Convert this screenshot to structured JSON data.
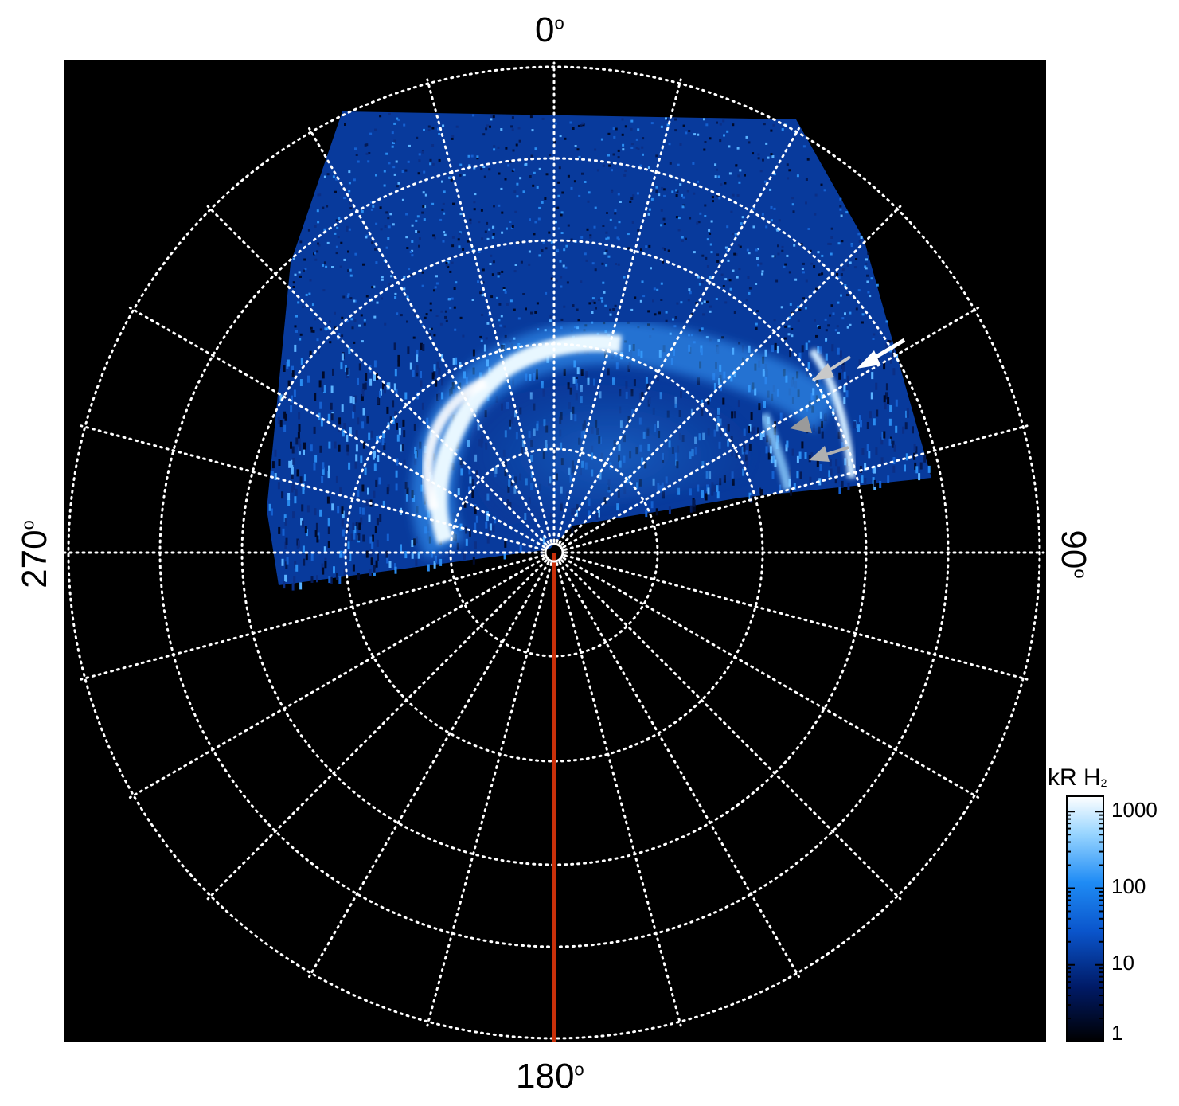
{
  "plot": {
    "azimuth_labels": {
      "top": "0",
      "right": "90",
      "bottom": "180",
      "left": "270"
    },
    "degree_symbol": "o",
    "grid": "dotted",
    "background_color": "#000000",
    "grid_color": "#ffffff",
    "meridian_color": "#c8300a"
  },
  "colorbar": {
    "title_main": "kR H",
    "title_sub": "2",
    "tick_labels": [
      "1000",
      "100",
      "10",
      "1"
    ],
    "scale": "log",
    "colors": [
      "#000000",
      "#001a66",
      "#0a5fd8",
      "#2f9bff",
      "#cfeeff",
      "#ffffff"
    ]
  },
  "annotations": {
    "arrows": [
      {
        "color": "#ffffff",
        "description": "white arrow"
      },
      {
        "color": "#c9c9c9",
        "description": "light gray arrow"
      },
      {
        "color": "#9a9a9a",
        "description": "gray arrow"
      },
      {
        "color": "#b0b0b0",
        "description": "gray arrow"
      }
    ]
  }
}
